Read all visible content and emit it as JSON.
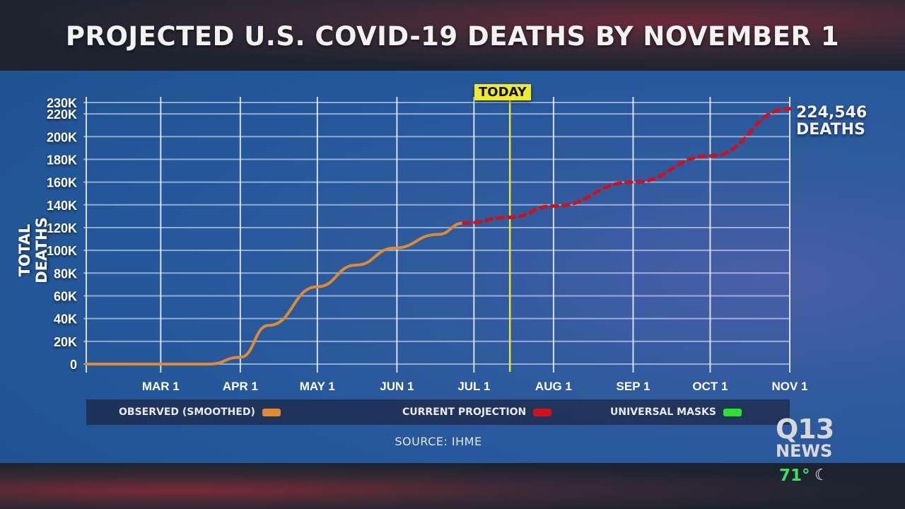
{
  "title": "PROJECTED U.S. COVID-19 DEATHS BY NOVEMBER 1",
  "source": "SOURCE: IHME",
  "station": {
    "logo_line1": "Q13",
    "logo_line2": "NEWS",
    "temperature": "71°",
    "weather_icon": "moon-icon"
  },
  "chart_data": {
    "type": "line",
    "title": "PROJECTED U.S. COVID-19 DEATHS BY NOVEMBER 1",
    "xlabel": "",
    "ylabel": "TOTAL DEATHS",
    "x_unit": "days since Feb 1, 2020",
    "xlim": [
      0,
      274
    ],
    "ylim": [
      0,
      230000
    ],
    "x_ticks": [
      {
        "day": 29,
        "label": "MAR 1"
      },
      {
        "day": 60,
        "label": "APR 1"
      },
      {
        "day": 90,
        "label": "MAY 1"
      },
      {
        "day": 121,
        "label": "JUN 1"
      },
      {
        "day": 151,
        "label": "JUL 1"
      },
      {
        "day": 182,
        "label": "AUG 1"
      },
      {
        "day": 213,
        "label": "SEP 1"
      },
      {
        "day": 243,
        "label": "OCT 1"
      },
      {
        "day": 274,
        "label": "NOV 1"
      }
    ],
    "y_ticks": [
      {
        "value": 0,
        "label": "0"
      },
      {
        "value": 20000,
        "label": "20K"
      },
      {
        "value": 40000,
        "label": "40K"
      },
      {
        "value": 60000,
        "label": "60K"
      },
      {
        "value": 80000,
        "label": "80K"
      },
      {
        "value": 100000,
        "label": "100K"
      },
      {
        "value": 120000,
        "label": "120K"
      },
      {
        "value": 140000,
        "label": "140K"
      },
      {
        "value": 160000,
        "label": "160K"
      },
      {
        "value": 180000,
        "label": "180K"
      },
      {
        "value": 200000,
        "label": "200K"
      },
      {
        "value": 220000,
        "label": "220K"
      },
      {
        "value": 230000,
        "label": "230K"
      }
    ],
    "grid": true,
    "today": {
      "day": 165,
      "label": "TODAY"
    },
    "annotation": {
      "line1": "224,546",
      "line2": "DEATHS"
    },
    "series": [
      {
        "name": "OBSERVED (SMOOTHED)",
        "color": "#e08a30",
        "style": "solid",
        "x": [
          0,
          29,
          48,
          60,
          71,
          90,
          105,
          120,
          137,
          147
        ],
        "y": [
          0,
          0,
          0,
          6000,
          34000,
          68000,
          87000,
          102000,
          114000,
          124000
        ]
      },
      {
        "name": "CURRENT PROJECTION",
        "color": "#d0101a",
        "style": "dashed",
        "x": [
          147,
          165,
          182,
          213,
          243,
          274
        ],
        "y": [
          124000,
          129000,
          139000,
          160000,
          183000,
          224546
        ]
      },
      {
        "name": "UNIVERSAL MASKS",
        "color": "#2ee030",
        "style": "solid",
        "x": [],
        "y": []
      }
    ],
    "legend_position": "bottom"
  }
}
